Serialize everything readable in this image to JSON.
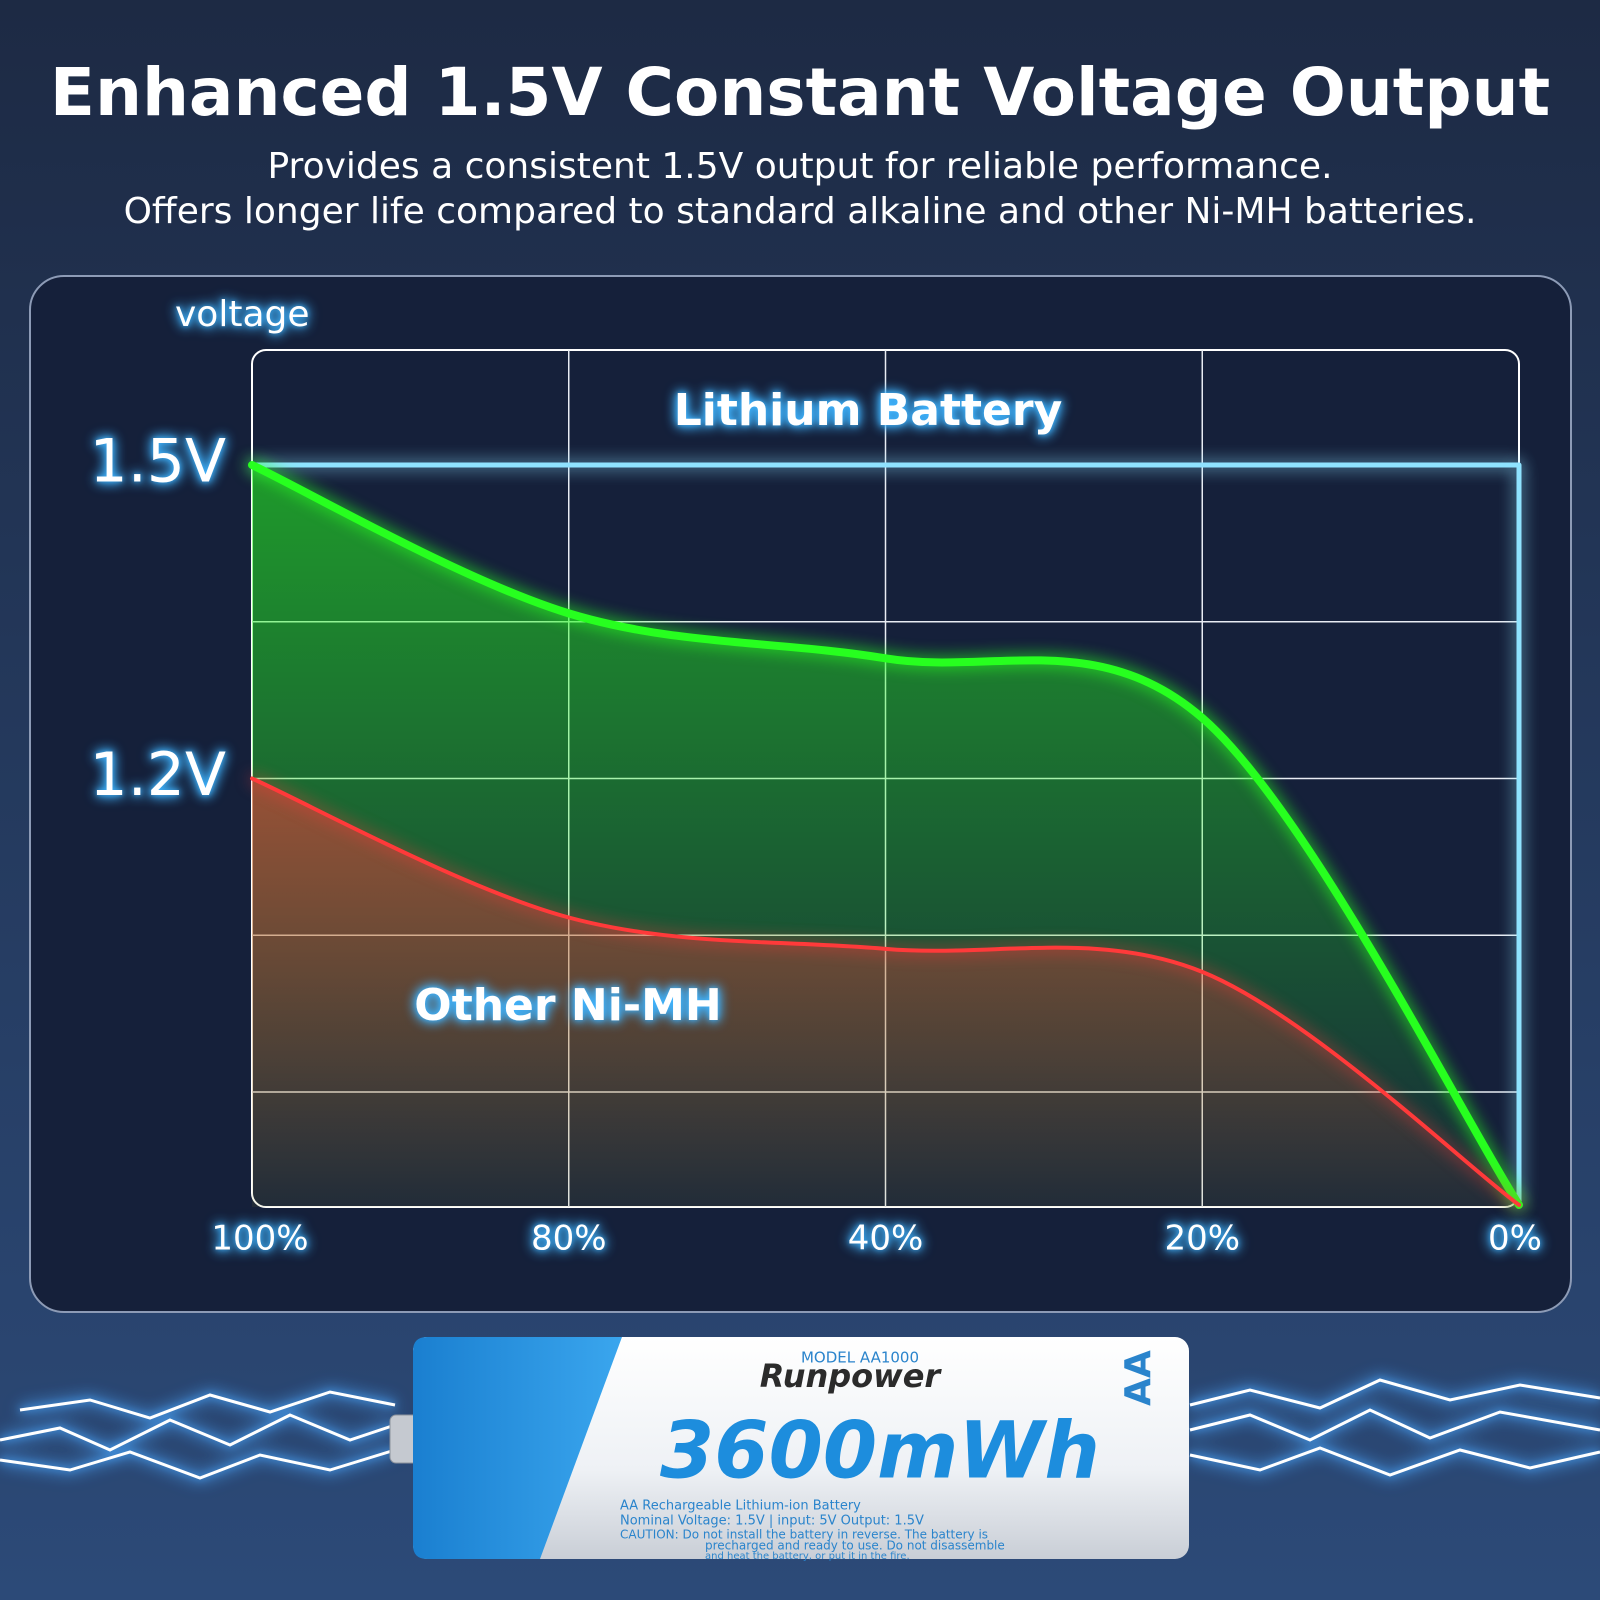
{
  "chart_data": {
    "type": "line",
    "title": "Enhanced 1.5V Constant Voltage Output",
    "subtitle": [
      "Provides a consistent 1.5V output for reliable performance.",
      "Offers longer life compared to standard alkaline and other Ni-MH batteries."
    ],
    "y_label": "voltage",
    "categories": [
      "100%",
      "80%",
      "40%",
      "20%",
      "0%"
    ],
    "ylim": [
      0.79,
      1.61
    ],
    "yticks": [
      {
        "value": 1.5,
        "label": "1.5V"
      },
      {
        "value": 1.2,
        "label": "1.2V"
      }
    ],
    "ygrid": [
      0.9,
      1.05,
      1.2,
      1.35,
      1.5
    ],
    "grid": true,
    "series": [
      {
        "name": "Lithium Battery",
        "color": "#8fe3ff",
        "values": [
          1.5,
          1.5,
          1.5,
          1.5,
          1.5
        ]
      },
      {
        "color": "#27ff1f",
        "values": [
          1.5,
          1.358,
          1.315,
          1.258,
          0.792
        ]
      },
      {
        "name": "Other Ni-MH",
        "color": "#ff3a3a",
        "values": [
          1.2,
          1.067,
          1.037,
          1.015,
          0.792
        ]
      }
    ]
  },
  "product": {
    "model": "MODEL AA1000",
    "brand": "Runpower",
    "size": "AA",
    "capacity": "3600mWh",
    "print_lines": [
      "AA Rechargeable Lithium-ion Battery",
      "Nominal Voltage: 1.5V | input: 5V Output: 1.5V",
      "CAUTION: Do not install the battery in reverse. The battery is",
      "precharged and ready to use. Do not disassemble",
      "and heat the battery, or put it in the fire."
    ]
  }
}
